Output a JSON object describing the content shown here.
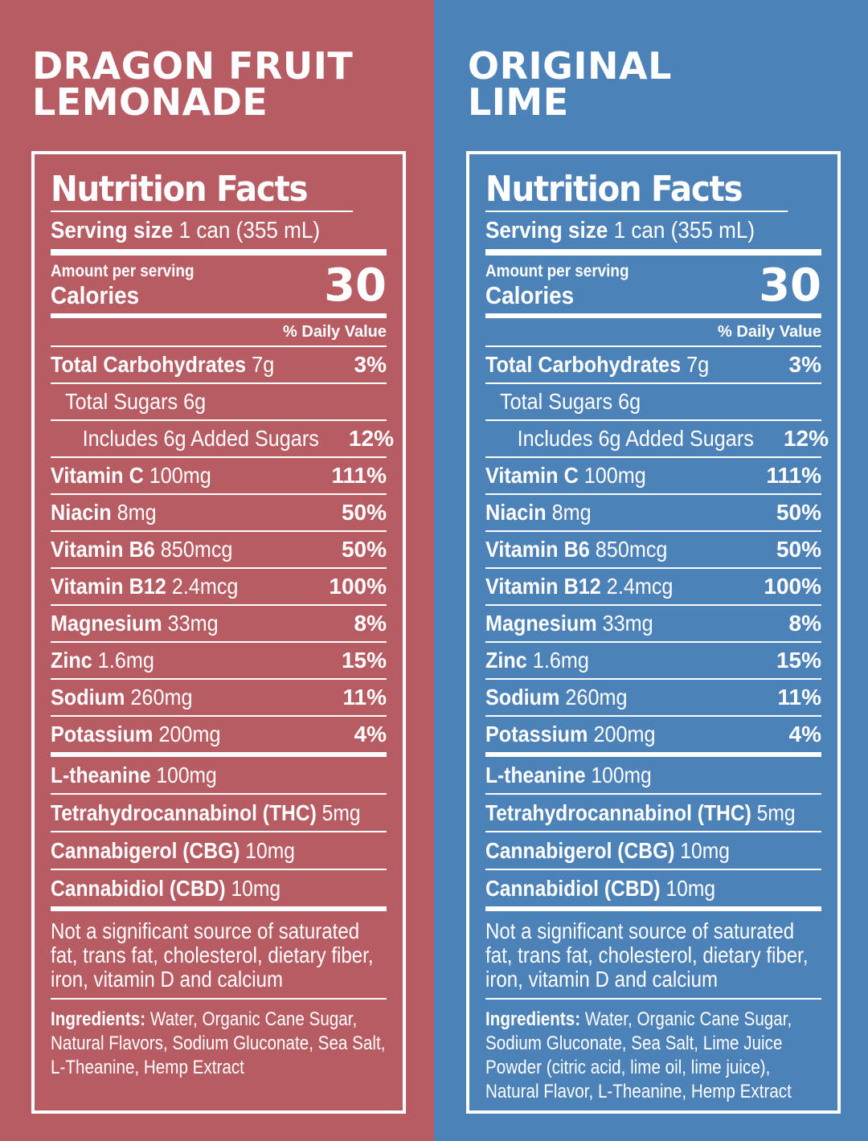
{
  "labels": [
    {
      "flavor_line1": "DRAGON FRUIT",
      "flavor_line2": "LEMONADE",
      "title": "Nutrition Facts",
      "serving_label": "Serving size",
      "serving_value": "1 can (355 mL)",
      "amount_per_serving": "Amount per serving",
      "calories_label": "Calories",
      "calories_value": "30",
      "daily_value_header": "% Daily Value",
      "nutrients": [
        {
          "name": "Total Carbohydrates",
          "amount": "7g",
          "dv": "3%"
        },
        {
          "name": "",
          "amount": "Total Sugars 6g",
          "dv": ""
        },
        {
          "name": "",
          "amount": "Includes 6g Added Sugars",
          "dv": "12%"
        },
        {
          "name": "Vitamin C",
          "amount": "100mg",
          "dv": "111%"
        },
        {
          "name": "Niacin",
          "amount": "8mg",
          "dv": "50%"
        },
        {
          "name": "Vitamin B6",
          "amount": "850mcg",
          "dv": "50%"
        },
        {
          "name": "Vitamin B12",
          "amount": "2.4mcg",
          "dv": "100%"
        },
        {
          "name": "Magnesium",
          "amount": "33mg",
          "dv": "8%"
        },
        {
          "name": "Zinc",
          "amount": "1.6mg",
          "dv": "15%"
        },
        {
          "name": "Sodium",
          "amount": "260mg",
          "dv": "11%"
        },
        {
          "name": "Potassium",
          "amount": "200mg",
          "dv": "4%"
        }
      ],
      "cannabinoids": [
        {
          "name": "L-theanine",
          "amount": "100mg"
        },
        {
          "name": "Tetrahydrocannabinol (THC)",
          "amount": "5mg"
        },
        {
          "name": "Cannabigerol (CBG)",
          "amount": "10mg"
        },
        {
          "name": "Cannabidiol (CBD)",
          "amount": "10mg"
        }
      ],
      "note": "Not a significant source of saturated fat, trans fat, cholesterol, dietary fiber, iron, vitamin D and calcium",
      "ingredients_label": "Ingredients:",
      "ingredients_text": "Water, Organic Cane Sugar, Natural Flavors, Sodium Gluconate, Sea Salt, L-Theanine, Hemp Extract"
    },
    {
      "flavor_line1": "ORIGINAL",
      "flavor_line2": "LIME",
      "title": "Nutrition Facts",
      "serving_label": "Serving size",
      "serving_value": "1 can (355 mL)",
      "amount_per_serving": "Amount per serving",
      "calories_label": "Calories",
      "calories_value": "30",
      "daily_value_header": "% Daily Value",
      "nutrients": [
        {
          "name": "Total Carbohydrates",
          "amount": "7g",
          "dv": "3%"
        },
        {
          "name": "",
          "amount": "Total Sugars 6g",
          "dv": ""
        },
        {
          "name": "",
          "amount": "Includes 6g Added Sugars",
          "dv": "12%"
        },
        {
          "name": "Vitamin C",
          "amount": "100mg",
          "dv": "111%"
        },
        {
          "name": "Niacin",
          "amount": "8mg",
          "dv": "50%"
        },
        {
          "name": "Vitamin B6",
          "amount": "850mcg",
          "dv": "50%"
        },
        {
          "name": "Vitamin B12",
          "amount": "2.4mcg",
          "dv": "100%"
        },
        {
          "name": "Magnesium",
          "amount": "33mg",
          "dv": "8%"
        },
        {
          "name": "Zinc",
          "amount": "1.6mg",
          "dv": "15%"
        },
        {
          "name": "Sodium",
          "amount": "260mg",
          "dv": "11%"
        },
        {
          "name": "Potassium",
          "amount": "200mg",
          "dv": "4%"
        }
      ],
      "cannabinoids": [
        {
          "name": "L-theanine",
          "amount": "100mg"
        },
        {
          "name": "Tetrahydrocannabinol (THC)",
          "amount": "5mg"
        },
        {
          "name": "Cannabigerol (CBG)",
          "amount": "10mg"
        },
        {
          "name": "Cannabidiol (CBD)",
          "amount": "10mg"
        }
      ],
      "note": "Not a significant source of saturated fat, trans fat, cholesterol, dietary fiber, iron, vitamin D and calcium",
      "ingredients_label": "Ingredients:",
      "ingredients_text": "Water, Organic Cane Sugar, Sodium Gluconate, Sea Salt, Lime Juice Powder (citric acid, lime oil, lime juice), Natural Flavor, L-Theanine, Hemp Extract"
    }
  ],
  "colors": {
    "left_bg": "#b75c63",
    "right_bg": "#4c82b8",
    "text": "#ffffff"
  }
}
